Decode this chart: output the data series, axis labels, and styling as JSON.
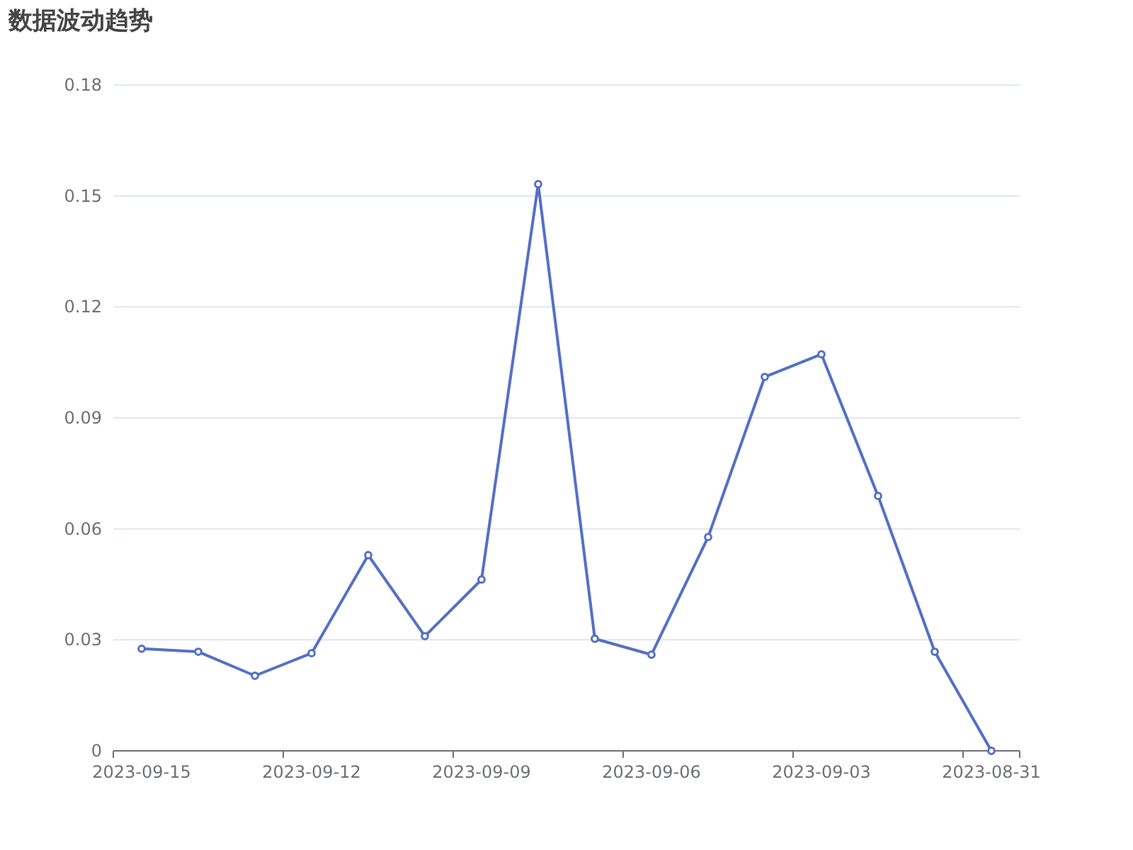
{
  "chart_data": {
    "type": "line",
    "title": "数据波动趋势",
    "categories": [
      "2023-09-15",
      null,
      null,
      "2023-09-12",
      null,
      null,
      "2023-09-09",
      null,
      null,
      "2023-09-06",
      null,
      null,
      "2023-09-03",
      null,
      null,
      "2023-08-31"
    ],
    "series": [
      {
        "color": "#5470c6",
        "values": [
          0.0276,
          0.0268,
          0.0203,
          0.0264,
          0.0529,
          0.031,
          0.0463,
          0.1532,
          0.0303,
          0.026,
          0.0578,
          0.1011,
          0.1072,
          0.0689,
          0.0268,
          0
        ]
      }
    ],
    "ylim": [
      0,
      0.18
    ],
    "yticks": [
      0,
      0.03,
      0.06,
      0.09,
      0.12,
      0.15,
      0.18
    ],
    "grid": "y",
    "marker": "circle",
    "line_style": "solid"
  }
}
